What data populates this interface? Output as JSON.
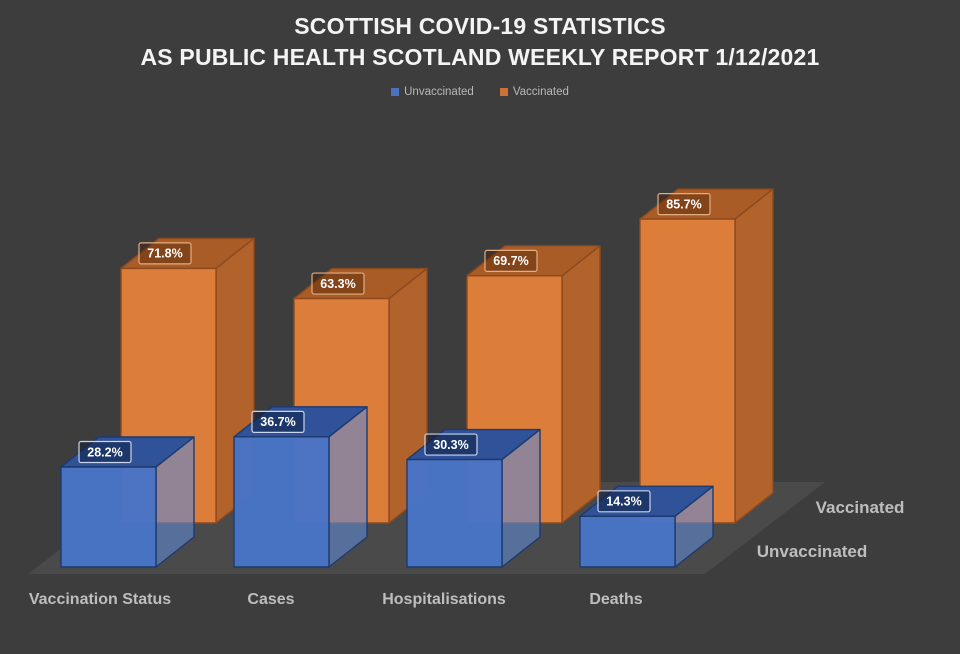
{
  "title": {
    "line1": "SCOTTISH COVID-19 STATISTICS",
    "line2": "AS PUBLIC HEALTH SCOTLAND WEEKLY REPORT 1/12/2021"
  },
  "legend": {
    "items": [
      {
        "label": "Unvaccinated",
        "color": "#4C72BF"
      },
      {
        "label": "Vaccinated",
        "color": "#CE7136"
      }
    ]
  },
  "series_axis": {
    "back": "Vaccinated",
    "front": "Unvaccinated"
  },
  "chart_data": {
    "type": "bar",
    "variant": "3d-clustered-column",
    "title": "SCOTTISH COVID-19 STATISTICS AS PUBLIC HEALTH SCOTLAND WEEKLY REPORT 1/12/2021",
    "categories": [
      "Vaccination Status",
      "Cases",
      "Hospitalisations",
      "Deaths"
    ],
    "series": [
      {
        "name": "Unvaccinated",
        "values": [
          28.2,
          36.7,
          30.3,
          14.3
        ]
      },
      {
        "name": "Vaccinated",
        "values": [
          71.8,
          63.3,
          69.7,
          85.7
        ]
      }
    ],
    "value_suffix": "%",
    "ylim": [
      0,
      100
    ],
    "legend_position": "top",
    "gridlines": false
  },
  "style": {
    "background": "#3D3D3D",
    "floor": "#4A4A4A",
    "title_color": "#F4F4F4",
    "axis_label_color": "#BEBEBE",
    "legend_text_color": "#B9B9B9",
    "label_text_color": "#FFFFFF",
    "series_styles": [
      {
        "front": "#4874C6",
        "top": "#2F5298",
        "side": "#6089D2",
        "side_opacity": 0.6,
        "front_opacity": 0.97,
        "edge": "#1E3A6E",
        "label_fill": "rgba(10,22,54,0.45)",
        "label_border": "#CAD5EE"
      },
      {
        "front": "#DC7D39",
        "top": "#AA5C27",
        "side": "#B2622B",
        "side_opacity": 1,
        "front_opacity": 1,
        "edge": "#8C4A1E",
        "label_fill": "rgba(70,30,5,0.38)",
        "label_border": "#E2AE81"
      }
    ]
  }
}
